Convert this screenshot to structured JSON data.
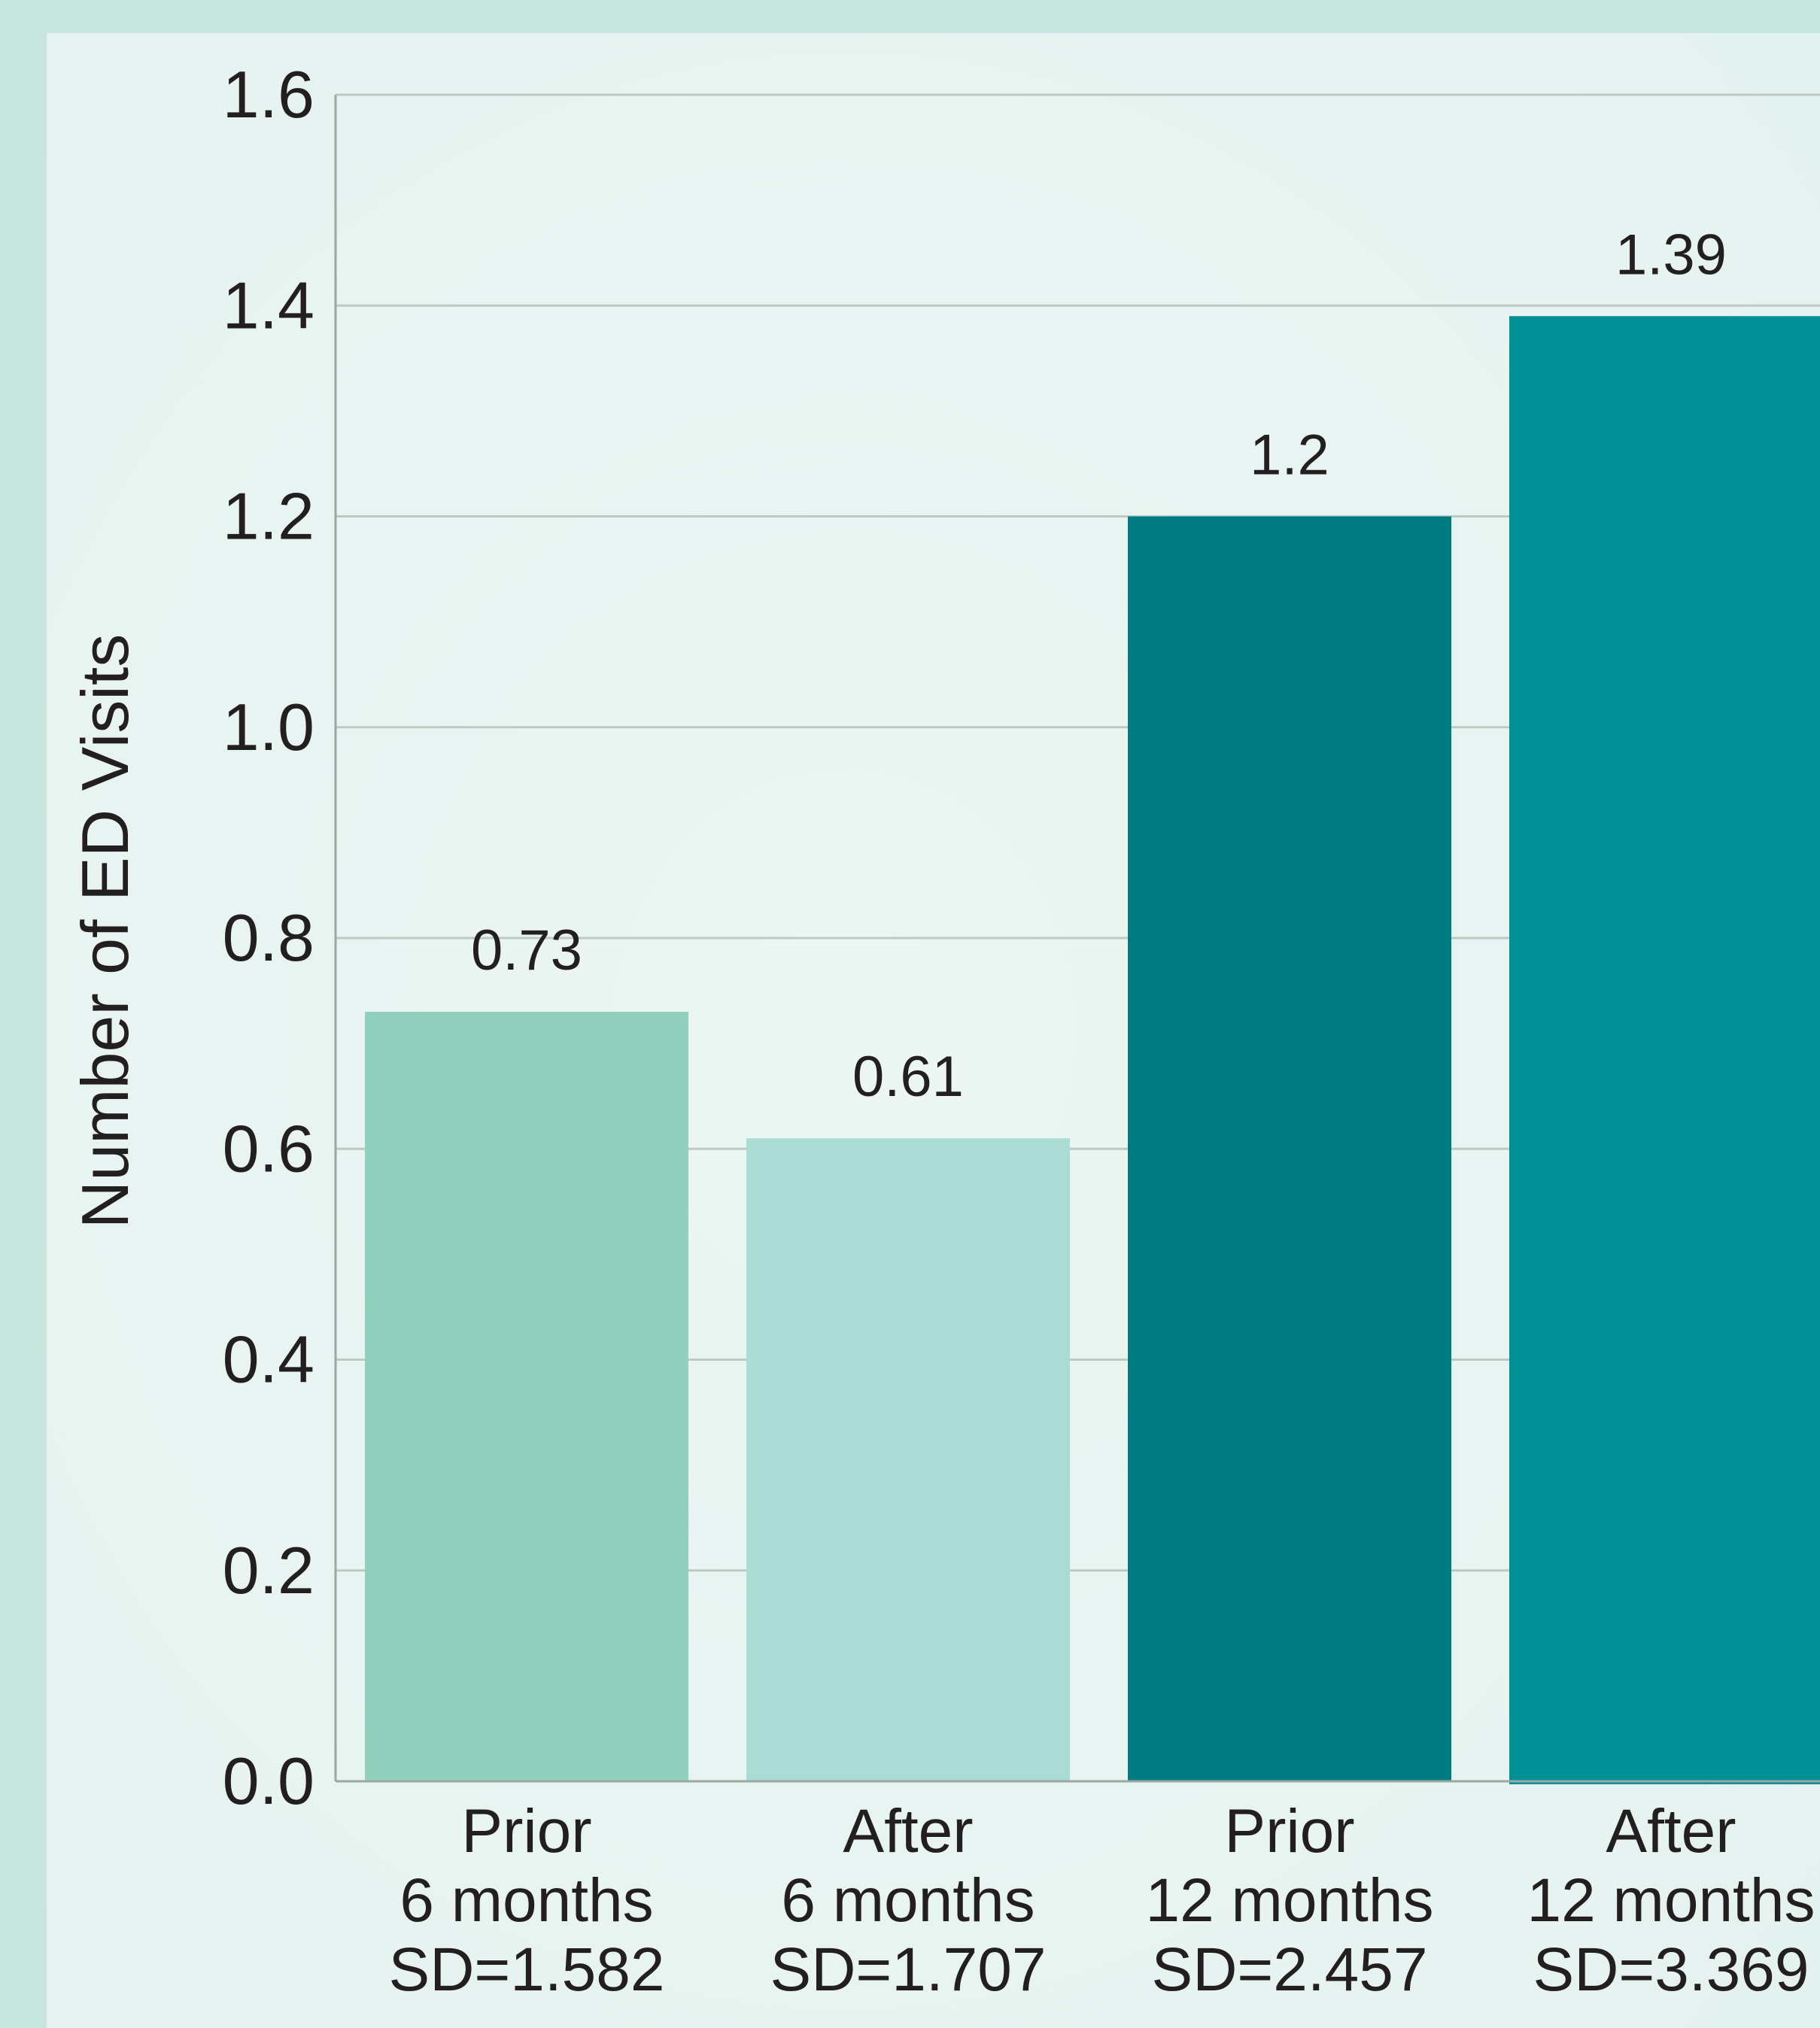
{
  "chart_data": {
    "type": "bar",
    "title": "",
    "xlabel": "",
    "ylabel": "Number of ED Visits",
    "ylim": [
      0,
      1.6
    ],
    "yticks": [
      "0.0",
      "0.2",
      "0.4",
      "0.6",
      "0.8",
      "1.0",
      "1.2",
      "1.4",
      "1.6"
    ],
    "grid": true,
    "categories": [
      [
        "Prior",
        "6 months",
        "SD=1.582"
      ],
      [
        "After",
        "6 months",
        "SD=1.707"
      ],
      [
        "Prior",
        "12 months",
        "SD=2.457"
      ],
      [
        "After",
        "12 months",
        "SD=3.369"
      ]
    ],
    "values": [
      0.73,
      0.61,
      1.2,
      1.39
    ],
    "data_labels": [
      "0.73",
      "0.61",
      "1.2",
      "1.39"
    ],
    "colors": [
      "#90d0bd",
      "#aadcd5",
      "#007b82",
      "#008f96"
    ]
  },
  "colors": {
    "background": "#c6e6de",
    "panel": "#e8f4f1",
    "grid": "#bcc9c5",
    "axis": "#9aa8a4"
  }
}
